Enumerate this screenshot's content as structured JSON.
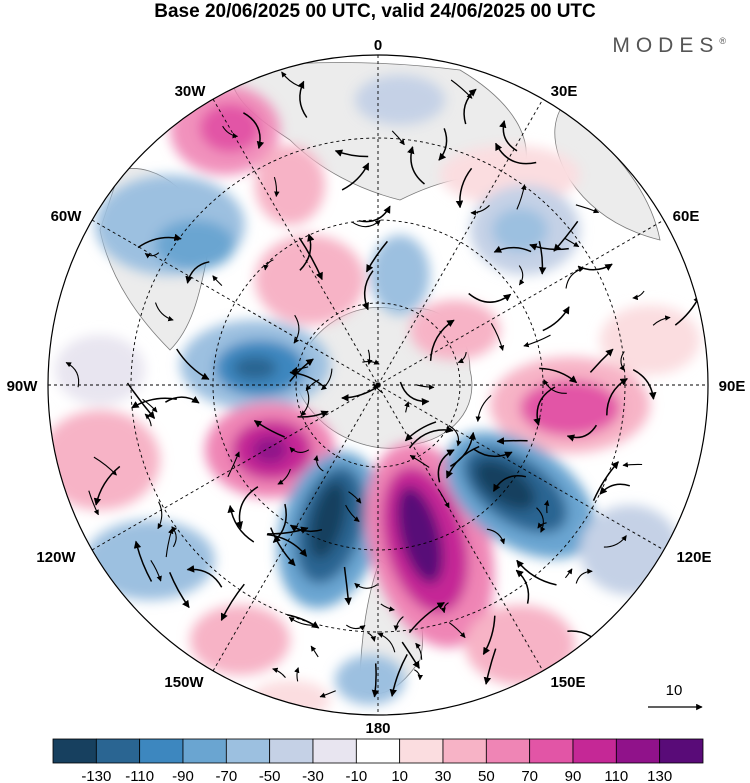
{
  "title": "Base 20/06/2025 00 UTC, valid 24/06/2025 00 UTC",
  "brand": "MODES",
  "brand_mark": "®",
  "longitude_labels": [
    "0",
    "30E",
    "60E",
    "90E",
    "120E",
    "150E",
    "180",
    "150W",
    "120W",
    "90W",
    "60W",
    "30W"
  ],
  "vector_reference": "10",
  "colorbar": {
    "colors": [
      "#17405f",
      "#2a6592",
      "#3d87bf",
      "#6aa5d1",
      "#9cc0e0",
      "#c5d1e6",
      "#e8e5f0",
      "#ffffff",
      "#fbdde0",
      "#f7b3c6",
      "#ef85b5",
      "#e255a6",
      "#c52896",
      "#90128a",
      "#590b78"
    ],
    "tick_labels": [
      "-130",
      "-110",
      "-90",
      "-70",
      "-50",
      "-30",
      "-10",
      "10",
      "30",
      "50",
      "70",
      "90",
      "110",
      "130"
    ]
  },
  "colors": {
    "land": "#ececec",
    "outline": "#000000"
  }
}
